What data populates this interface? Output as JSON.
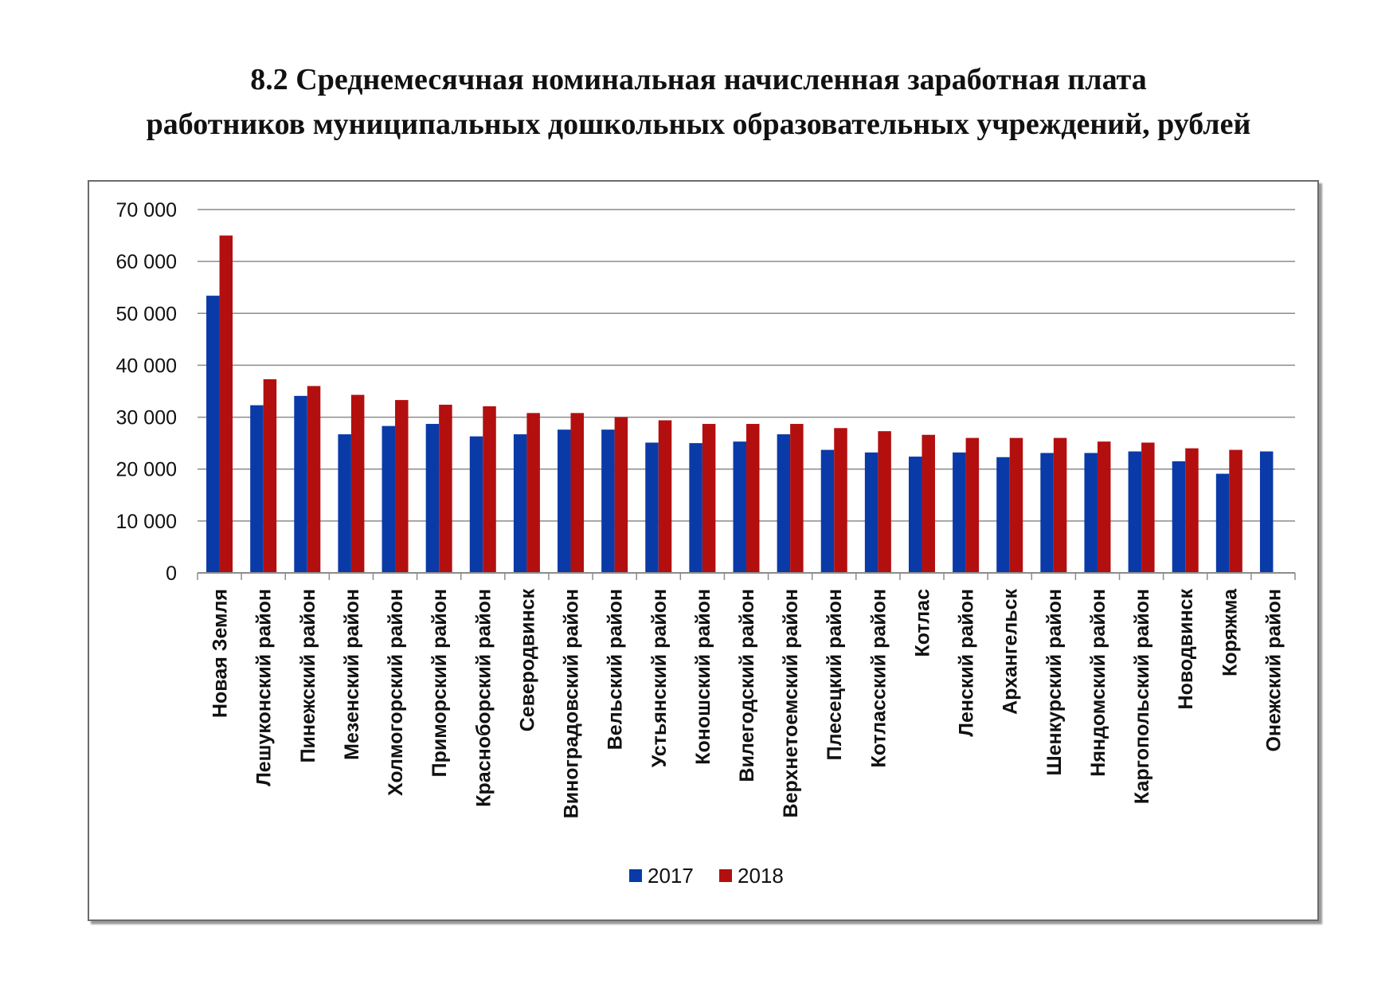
{
  "title": {
    "line1": "8.2 Среднемесячная номинальная начисленная заработная плата",
    "line2": "работников муниципальных дошкольных образовательных учреждений, рублей"
  },
  "colors": {
    "s2017": "#0a3aa8",
    "s2018": "#b30f0f",
    "grid": "#8c8c8c",
    "axis": "#8c8c8c"
  },
  "chart_data": {
    "type": "bar",
    "title": "8.2 Среднемесячная номинальная начисленная заработная плата работников муниципальных дошкольных образовательных учреждений, рублей",
    "xlabel": "",
    "ylabel": "",
    "ylim": [
      0,
      70000
    ],
    "yticks": [
      0,
      10000,
      20000,
      30000,
      40000,
      50000,
      60000,
      70000
    ],
    "ytick_labels": [
      "0",
      "10 000",
      "20 000",
      "30 000",
      "40 000",
      "50 000",
      "60 000",
      "70 000"
    ],
    "grid": true,
    "legend_position": "bottom",
    "categories": [
      "Новая Земля",
      "Лешуконский район",
      "Пинежский район",
      "Мезенский район",
      "Холмогорский район",
      "Приморский район",
      "Красноборский район",
      "Северодвинск",
      "Виноградовский район",
      "Вельский район",
      "Устьянский район",
      "Коношский район",
      "Вилегодский район",
      "Верхнетоемский район",
      "Плесецкий район",
      "Котласский район",
      "Котлас",
      "Ленский район",
      "Архангельск",
      "Шенкурский район",
      "Няндомский район",
      "Каргопольский район",
      "Новодвинск",
      "Коряжма",
      "Онежский район"
    ],
    "series": [
      {
        "name": "2017",
        "values": [
          53400,
          32300,
          34100,
          26700,
          28300,
          28700,
          26300,
          26700,
          27600,
          27600,
          25100,
          25000,
          25300,
          26700,
          23700,
          23200,
          22400,
          23200,
          22300,
          23100,
          23100,
          23400,
          21500,
          19100,
          23400
        ]
      },
      {
        "name": "2018",
        "values": [
          65000,
          37300,
          36000,
          34300,
          33300,
          32400,
          32100,
          30800,
          30800,
          30000,
          29400,
          28700,
          28700,
          28700,
          27900,
          27300,
          26600,
          26000,
          26000,
          26000,
          25300,
          25100,
          24000,
          23700,
          null
        ]
      }
    ]
  }
}
